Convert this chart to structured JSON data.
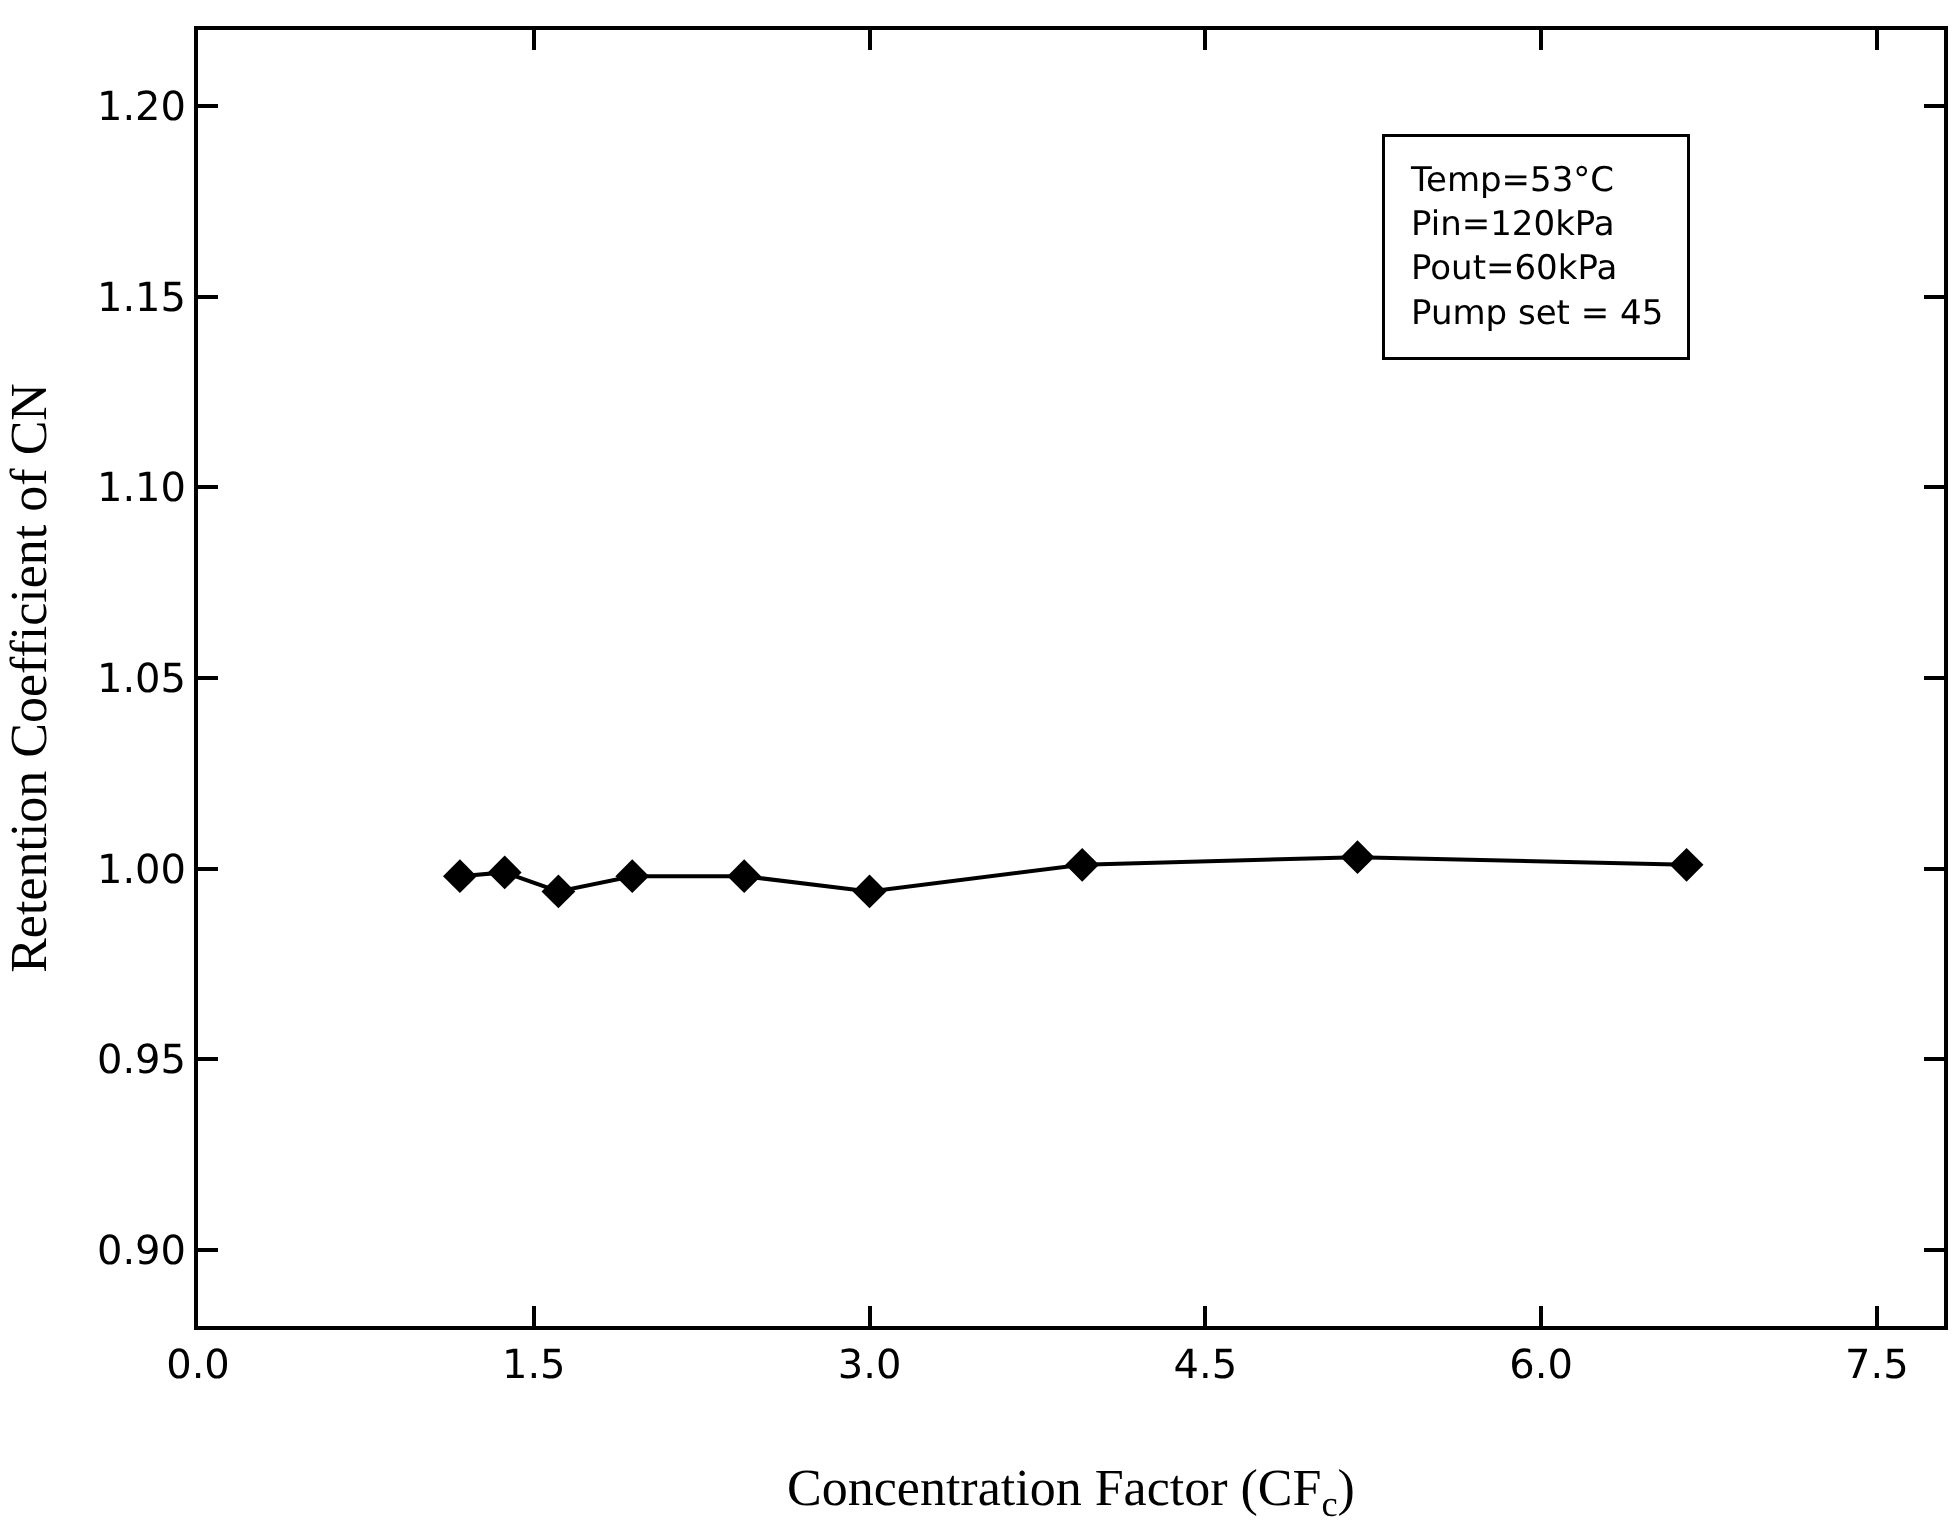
{
  "chart_data": {
    "type": "line",
    "xlabel": "Concentration Factor (CF$_{c}$)",
    "ylabel": "Retention Coefficient of CN",
    "annotations": [
      "Temp=53°C\nPin=120kPa\nPout=60kPa\nPump set = 45"
    ],
    "x": [
      1.17,
      1.37,
      1.61,
      1.94,
      2.44,
      3.0,
      3.95,
      5.18,
      6.65
    ],
    "series": [
      {
        "color": "#000000",
        "values": [
          0.998,
          0.999,
          0.994,
          0.998,
          0.998,
          0.994,
          1.001,
          1.003,
          1.001
        ]
      }
    ],
    "marker": "diamond",
    "line_style": "solid",
    "xlim": [
      0,
      7.8
    ],
    "ylim": [
      0.88,
      1.22
    ],
    "xticks": [
      {
        "value": 0,
        "label": "0.0"
      },
      1.5,
      {
        "value": 3,
        "label": "3.0"
      },
      4.5,
      {
        "value": 6,
        "label": "6.0"
      },
      7.5
    ],
    "yticks": [
      {
        "value": 0.9,
        "label": "0.90"
      },
      0.95,
      {
        "value": 1.0,
        "label": "1.00"
      },
      1.05,
      {
        "value": 1.1,
        "label": "1.10"
      },
      1.15,
      {
        "value": 1.2,
        "label": "1.20"
      }
    ]
  }
}
